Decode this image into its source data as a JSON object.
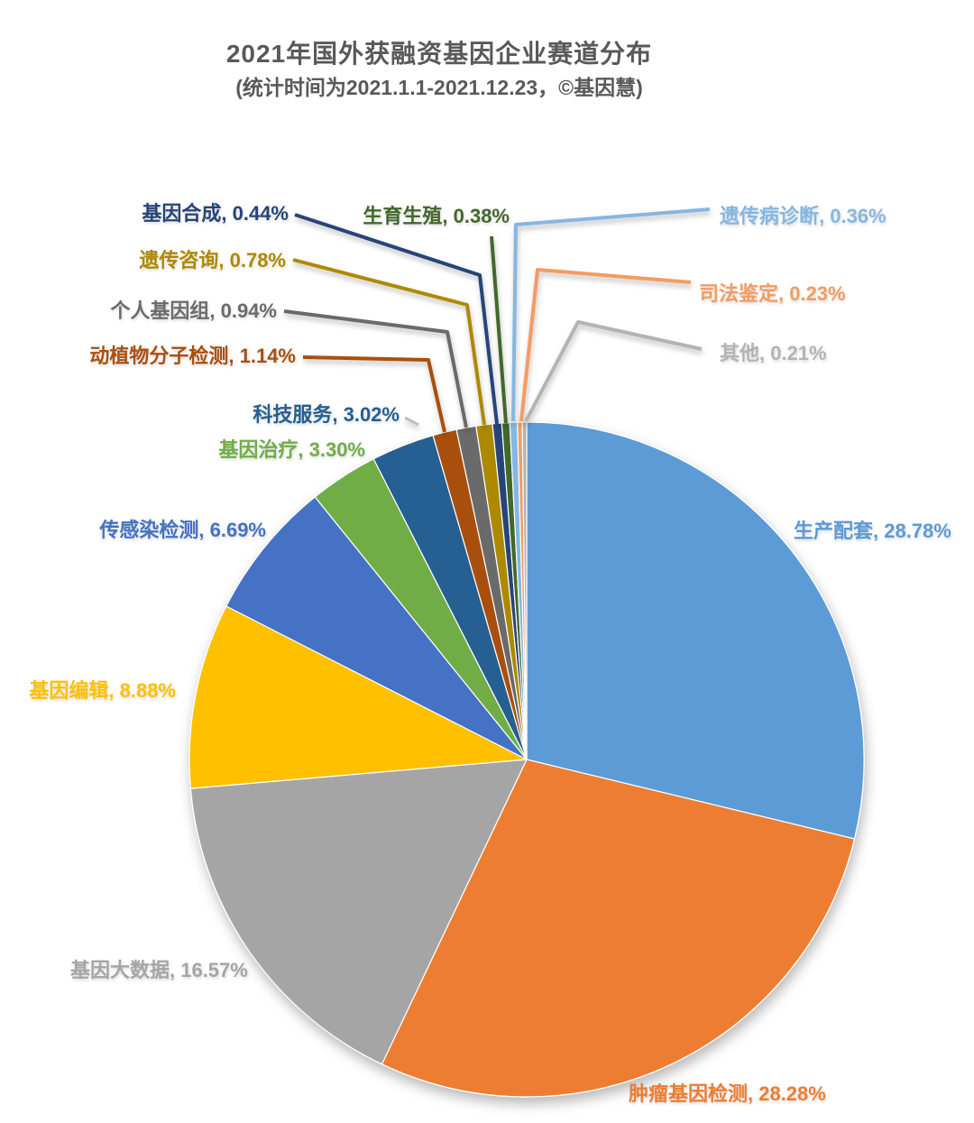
{
  "chart_data": {
    "type": "pie",
    "title": "2021年国外获融资基因企业赛道分布",
    "subtitle": "(统计时间为2021.1.1-2021.12.23，©基因慧)",
    "unit": "%",
    "start_angle_deg": 0,
    "direction": "clockwise",
    "legend": "none",
    "label_format": "{name}, {value}%",
    "categories": [
      "生产配套",
      "肿瘤基因检测",
      "基因大数据",
      "基因编辑",
      "传感染检测",
      "基因治疗",
      "科技服务",
      "动植物分子检测",
      "个人基因组",
      "遗传咨询",
      "基因合成",
      "生育生殖",
      "遗传病诊断",
      "司法鉴定",
      "其他"
    ],
    "values": [
      28.78,
      28.28,
      16.57,
      8.88,
      6.69,
      3.3,
      3.02,
      1.14,
      0.94,
      0.78,
      0.44,
      0.38,
      0.36,
      0.23,
      0.21
    ],
    "colors": [
      "#5B9BD5",
      "#ED7D31",
      "#A5A5A5",
      "#FFC000",
      "#4472C4",
      "#70AD47",
      "#255E91",
      "#A94F10",
      "#6B6B6B",
      "#AD8900",
      "#264478",
      "#43682B",
      "#85B7E2",
      "#F29C63",
      "#B3B3B3"
    ]
  }
}
